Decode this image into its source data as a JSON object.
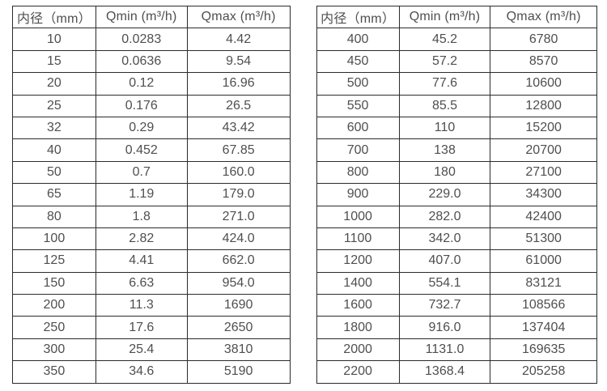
{
  "page": {
    "background": "#ffffff",
    "description_labels": {
      "diameter_header": "内径（mm）",
      "qmin_header": "Qmin (m³/h)",
      "qmax_header": "Qmax (m³/h)"
    }
  },
  "colors": {
    "border": "#2b2b2b",
    "text": "#4f4f4f",
    "background": "#ffffff"
  },
  "tables": [
    {
      "name": "flow-table-small-diameters",
      "headers": [
        "内径（mm）",
        "Qmin (m³/h)",
        "Qmax (m³/h)"
      ],
      "rows": [
        [
          "10",
          "0.0283",
          "4.42"
        ],
        [
          "15",
          "0.0636",
          "9.54"
        ],
        [
          "20",
          "0.12",
          "16.96"
        ],
        [
          "25",
          "0.176",
          "26.5"
        ],
        [
          "32",
          "0.29",
          "43.42"
        ],
        [
          "40",
          "0.452",
          "67.85"
        ],
        [
          "50",
          "0.7",
          "160.0"
        ],
        [
          "65",
          "1.19",
          "179.0"
        ],
        [
          "80",
          "1.8",
          "271.0"
        ],
        [
          "100",
          "2.82",
          "424.0"
        ],
        [
          "125",
          "4.41",
          "662.0"
        ],
        [
          "150",
          "6.63",
          "954.0"
        ],
        [
          "200",
          "11.3",
          "1690"
        ],
        [
          "250",
          "17.6",
          "2650"
        ],
        [
          "300",
          "25.4",
          "3810"
        ],
        [
          "350",
          "34.6",
          "5190"
        ]
      ]
    },
    {
      "name": "flow-table-large-diameters",
      "headers": [
        "内径（mm）",
        "Qmin (m³/h)",
        "Qmax (m³/h)"
      ],
      "rows": [
        [
          "400",
          "45.2",
          "6780"
        ],
        [
          "450",
          "57.2",
          "8570"
        ],
        [
          "500",
          "77.6",
          "10600"
        ],
        [
          "550",
          "85.5",
          "12800"
        ],
        [
          "600",
          "110",
          "15200"
        ],
        [
          "700",
          "138",
          "20700"
        ],
        [
          "800",
          "180",
          "27100"
        ],
        [
          "900",
          "229.0",
          "34300"
        ],
        [
          "1000",
          "282.0",
          "42400"
        ],
        [
          "1100",
          "342.0",
          "51300"
        ],
        [
          "1200",
          "407.0",
          "61000"
        ],
        [
          "1400",
          "554.1",
          "83121"
        ],
        [
          "1600",
          "732.7",
          "108566"
        ],
        [
          "1800",
          "916.0",
          "137404"
        ],
        [
          "2000",
          "1131.0",
          "169635"
        ],
        [
          "2200",
          "1368.4",
          "205258"
        ]
      ]
    }
  ]
}
